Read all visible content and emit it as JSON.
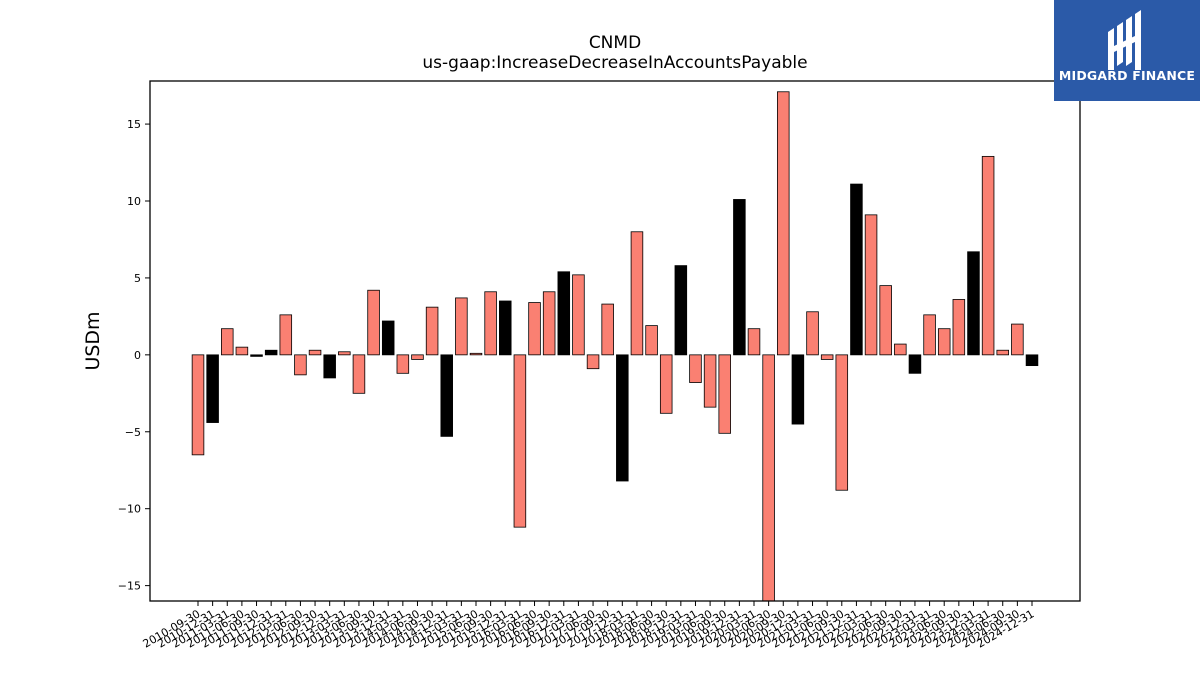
{
  "chart_data": {
    "type": "bar",
    "title": "CNMD",
    "subtitle": "us-gaap:IncreaseDecreaseInAccountsPayable",
    "ylabel": "USDm",
    "xlabel": "",
    "ylim": [
      -16,
      17.8
    ],
    "yticks": [
      -15,
      -10,
      -5,
      0,
      5,
      10,
      15
    ],
    "grid": false,
    "colors": {
      "default": "#fa8072",
      "highlight": "#000000",
      "edge": "#000000"
    },
    "categories": [
      "2010-09-30",
      "2010-12-31",
      "2011-03-31",
      "2011-06-30",
      "2011-09-30",
      "2011-12-31",
      "2012-03-31",
      "2012-06-30",
      "2012-09-30",
      "2012-12-31",
      "2013-03-31",
      "2013-06-30",
      "2013-09-30",
      "2013-12-31",
      "2014-03-31",
      "2014-06-30",
      "2014-09-30",
      "2014-12-31",
      "2015-03-31",
      "2015-06-30",
      "2015-09-30",
      "2015-12-31",
      "2016-03-31",
      "2016-06-30",
      "2016-09-30",
      "2016-12-31",
      "2017-03-31",
      "2017-06-30",
      "2017-09-30",
      "2017-12-31",
      "2018-03-31",
      "2018-06-30",
      "2018-09-30",
      "2018-12-31",
      "2019-03-31",
      "2019-06-30",
      "2019-09-30",
      "2019-12-31",
      "2020-03-31",
      "2020-06-30",
      "2020-09-30",
      "2020-12-31",
      "2021-03-31",
      "2021-06-30",
      "2021-09-30",
      "2021-12-31",
      "2022-03-31",
      "2022-06-30",
      "2022-09-30",
      "2022-12-31",
      "2023-03-31",
      "2023-06-30",
      "2023-09-30",
      "2023-12-31",
      "2024-03-31",
      "2024-06-30",
      "2024-09-30",
      "2024-12-31"
    ],
    "values": [
      -6.5,
      -4.4,
      1.7,
      0.5,
      -0.1,
      0.3,
      2.6,
      -1.3,
      0.3,
      -1.5,
      0.2,
      -2.5,
      4.2,
      2.2,
      -1.2,
      -0.3,
      3.1,
      -5.3,
      3.7,
      0.1,
      4.1,
      3.5,
      -11.2,
      3.4,
      4.1,
      5.4,
      5.2,
      -0.9,
      3.3,
      -8.2,
      8.0,
      1.9,
      -3.8,
      5.8,
      -1.8,
      -3.4,
      -5.1,
      10.1,
      1.7,
      -16.0,
      17.1,
      -4.5,
      2.8,
      -0.3,
      -8.8,
      11.1,
      9.1,
      4.5,
      0.7,
      -1.2,
      2.6,
      1.7,
      3.6,
      6.7,
      12.9,
      0.3,
      2.0,
      -0.7
    ],
    "highlight": [
      false,
      true,
      false,
      false,
      true,
      true,
      false,
      false,
      false,
      true,
      false,
      false,
      false,
      true,
      false,
      false,
      false,
      true,
      false,
      false,
      false,
      true,
      false,
      false,
      false,
      true,
      false,
      false,
      false,
      true,
      false,
      false,
      false,
      true,
      false,
      false,
      false,
      true,
      false,
      false,
      false,
      true,
      false,
      false,
      false,
      true,
      false,
      false,
      false,
      true,
      false,
      false,
      false,
      true,
      false,
      false,
      false,
      true
    ]
  },
  "logo": {
    "text": "MIDGARD FINANCE",
    "bg": "#2b5aa8"
  }
}
